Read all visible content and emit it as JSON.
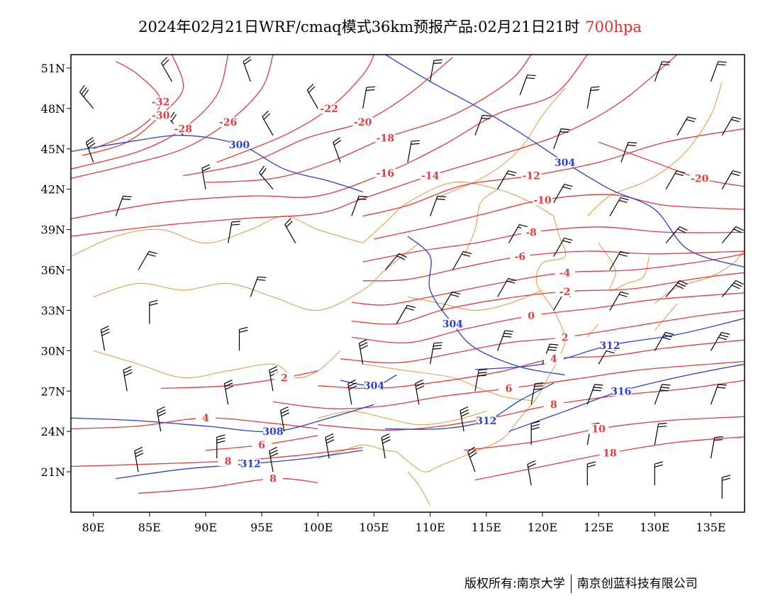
{
  "title": {
    "main": "2024年02月21日WRF/cmaq模式36km预报产品:02月21日21时",
    "level": "700hpa"
  },
  "footer": {
    "copyright": "版权所有:南京大学",
    "company": "南京创蓝科技有限公司"
  },
  "colors": {
    "temperature": "#e83a3a",
    "height": "#2a3fd6",
    "border": "#e09a3a",
    "wind": "#000000",
    "frame": "#000000"
  },
  "axes": {
    "lon_range": [
      78,
      138
    ],
    "lat_range": [
      18,
      52
    ],
    "x_ticks": [
      {
        "lon": 80,
        "label": "80E"
      },
      {
        "lon": 85,
        "label": "85E"
      },
      {
        "lon": 90,
        "label": "90E"
      },
      {
        "lon": 95,
        "label": "95E"
      },
      {
        "lon": 100,
        "label": "100E"
      },
      {
        "lon": 105,
        "label": "105E"
      },
      {
        "lon": 110,
        "label": "110E"
      },
      {
        "lon": 115,
        "label": "115E"
      },
      {
        "lon": 120,
        "label": "120E"
      },
      {
        "lon": 125,
        "label": "125E"
      },
      {
        "lon": 130,
        "label": "130E"
      },
      {
        "lon": 135,
        "label": "135E"
      }
    ],
    "y_ticks": [
      {
        "lat": 51,
        "label": "51N"
      },
      {
        "lat": 48,
        "label": "48N"
      },
      {
        "lat": 45,
        "label": "45N"
      },
      {
        "lat": 42,
        "label": "42N"
      },
      {
        "lat": 39,
        "label": "39N"
      },
      {
        "lat": 36,
        "label": "36N"
      },
      {
        "lat": 33,
        "label": "33N"
      },
      {
        "lat": 30,
        "label": "30N"
      },
      {
        "lat": 27,
        "label": "27N"
      },
      {
        "lat": 24,
        "label": "24N"
      },
      {
        "lat": 21,
        "label": "21N"
      }
    ]
  },
  "temperature_contours": [
    {
      "label": "-32",
      "pts": [
        [
          80,
          45
        ],
        [
          84,
          46.5
        ],
        [
          86,
          48.5
        ],
        [
          84,
          50.5
        ],
        [
          82,
          51.5
        ]
      ]
    },
    {
      "label": "-30",
      "pts": [
        [
          79,
          44.5
        ],
        [
          83,
          45.5
        ],
        [
          86,
          47.5
        ],
        [
          88,
          49.5
        ],
        [
          87,
          52
        ]
      ]
    },
    {
      "label": "-28",
      "pts": [
        [
          78,
          43.5
        ],
        [
          84,
          44.8
        ],
        [
          88,
          46.5
        ],
        [
          91,
          49
        ],
        [
          92,
          52
        ]
      ]
    },
    {
      "label": "-26",
      "pts": [
        [
          78,
          42.8
        ],
        [
          83,
          43.8
        ],
        [
          88,
          45
        ],
        [
          92,
          47
        ],
        [
          95,
          49.5
        ],
        [
          96,
          52
        ]
      ]
    },
    {
      "label": "-22",
      "pts": [
        [
          91,
          44
        ],
        [
          97,
          46
        ],
        [
          101,
          48
        ],
        [
          104,
          50.5
        ],
        [
          105,
          52
        ]
      ]
    },
    {
      "label": "-20",
      "pts": [
        [
          88,
          43
        ],
        [
          94,
          44
        ],
        [
          99,
          45.8
        ],
        [
          104,
          47
        ],
        [
          108,
          49
        ],
        [
          112,
          51.8
        ]
      ]
    },
    {
      "label": "-18",
      "pts": [
        [
          90,
          42.5
        ],
        [
          96,
          42.8
        ],
        [
          101,
          44
        ],
        [
          106,
          45.8
        ],
        [
          112,
          47.5
        ],
        [
          117,
          50
        ],
        [
          119,
          52
        ]
      ]
    },
    {
      "label": "-16",
      "pts": [
        [
          78,
          39.8
        ],
        [
          86,
          41
        ],
        [
          94,
          41.5
        ],
        [
          100,
          41.5
        ],
        [
          106,
          43.2
        ],
        [
          111,
          45.2
        ],
        [
          116,
          47.6
        ],
        [
          121,
          49
        ],
        [
          124,
          52
        ]
      ]
    },
    {
      "label": "-14",
      "pts": [
        [
          78,
          38.5
        ],
        [
          86,
          39.3
        ],
        [
          93,
          39.8
        ],
        [
          100,
          40.2
        ],
        [
          104,
          41.3
        ],
        [
          110,
          43
        ],
        [
          116,
          44.5
        ],
        [
          122,
          46.2
        ],
        [
          127,
          48.5
        ],
        [
          132,
          52
        ]
      ]
    },
    {
      "label": "-12",
      "pts": [
        [
          104,
          40
        ],
        [
          108,
          40.8
        ],
        [
          113,
          42.3
        ],
        [
          119,
          43
        ],
        [
          125,
          44
        ],
        [
          131,
          45.5
        ],
        [
          138,
          46.5
        ]
      ]
    },
    {
      "label": "-20",
      "pts": [
        [
          125,
          45.5
        ],
        [
          130,
          44
        ],
        [
          134,
          42.8
        ],
        [
          138,
          42.2
        ]
      ]
    },
    {
      "label": "-10",
      "pts": [
        [
          105,
          38.3
        ],
        [
          110,
          39.2
        ],
        [
          115,
          40.2
        ],
        [
          120,
          41.2
        ],
        [
          126,
          41.6
        ],
        [
          131,
          40.8
        ],
        [
          138,
          40.5
        ]
      ]
    },
    {
      "label": "-8",
      "pts": [
        [
          104,
          36.6
        ],
        [
          109,
          37.4
        ],
        [
          114,
          38
        ],
        [
          119,
          38.8
        ],
        [
          125,
          39.2
        ],
        [
          131,
          38.8
        ],
        [
          138,
          38.8
        ]
      ]
    },
    {
      "label": "-6",
      "pts": [
        [
          104,
          35.2
        ],
        [
          108,
          35.3
        ],
        [
          113,
          36.2
        ],
        [
          118,
          37
        ],
        [
          124,
          37.4
        ],
        [
          130,
          37.2
        ],
        [
          138,
          37.4
        ]
      ]
    },
    {
      "label": "-4",
      "pts": [
        [
          103,
          33.6
        ],
        [
          106,
          33.4
        ],
        [
          110,
          34
        ],
        [
          116,
          35
        ],
        [
          122,
          35.8
        ],
        [
          128,
          36
        ],
        [
          134,
          36.6
        ],
        [
          138,
          37.2
        ]
      ]
    },
    {
      "label": "-2",
      "pts": [
        [
          103,
          32.2
        ],
        [
          107,
          32
        ],
        [
          111,
          33
        ],
        [
          116,
          33.8
        ],
        [
          122,
          34.4
        ],
        [
          128,
          34.6
        ],
        [
          134,
          35.4
        ],
        [
          138,
          35.8
        ]
      ]
    },
    {
      "label": "0",
      "pts": [
        [
          103,
          31
        ],
        [
          108,
          30.6
        ],
        [
          113,
          31.6
        ],
        [
          119,
          32.6
        ],
        [
          125,
          33.2
        ],
        [
          130,
          33.8
        ],
        [
          138,
          34.3
        ]
      ]
    },
    {
      "label": "2",
      "pts": [
        [
          102,
          29.4
        ],
        [
          107,
          29.1
        ],
        [
          112,
          29.8
        ],
        [
          117,
          30.6
        ],
        [
          122,
          31
        ],
        [
          128,
          31.8
        ],
        [
          134,
          32.6
        ],
        [
          138,
          33
        ]
      ]
    },
    {
      "label": "4",
      "pts": [
        [
          100,
          27.4
        ],
        [
          105,
          27.2
        ],
        [
          110,
          27.6
        ],
        [
          116,
          28.4
        ],
        [
          121,
          29.4
        ],
        [
          126,
          29.6
        ],
        [
          131,
          30.2
        ],
        [
          138,
          30.8
        ]
      ]
    },
    {
      "label": "6",
      "pts": [
        [
          96,
          26.2
        ],
        [
          101,
          25.7
        ],
        [
          106,
          25.9
        ],
        [
          111,
          26.6
        ],
        [
          117,
          27.2
        ],
        [
          123,
          27.9
        ],
        [
          129,
          28.6
        ],
        [
          138,
          29.2
        ]
      ]
    },
    {
      "label": "8",
      "pts": [
        [
          100,
          24.5
        ],
        [
          106,
          24.1
        ],
        [
          111,
          24.4
        ],
        [
          116,
          25.1
        ],
        [
          121,
          26
        ],
        [
          127,
          26.7
        ],
        [
          133,
          27.2
        ],
        [
          138,
          27.8
        ]
      ]
    },
    {
      "label": "10",
      "pts": [
        [
          113,
          22.6
        ],
        [
          119,
          23.2
        ],
        [
          125,
          24.2
        ],
        [
          131,
          24.8
        ],
        [
          138,
          25.1
        ]
      ]
    },
    {
      "label": "18",
      "pts": [
        [
          114,
          20.4
        ],
        [
          120,
          21.4
        ],
        [
          126,
          22.4
        ],
        [
          132,
          23.2
        ],
        [
          138,
          23.6
        ]
      ]
    },
    {
      "label": "4",
      "pts": [
        [
          78,
          24.2
        ],
        [
          84,
          24.4
        ],
        [
          90,
          25
        ],
        [
          96,
          24.6
        ],
        [
          100,
          24.2
        ]
      ]
    },
    {
      "label": "2",
      "pts": [
        [
          86,
          27.2
        ],
        [
          92,
          27.4
        ],
        [
          97,
          28
        ],
        [
          100,
          28.5
        ]
      ]
    },
    {
      "label": "6",
      "pts": [
        [
          90,
          22.6
        ],
        [
          95,
          23
        ],
        [
          100,
          23.7
        ]
      ]
    },
    {
      "label": "8",
      "pts": [
        [
          78,
          21.4
        ],
        [
          86,
          21.6
        ],
        [
          92,
          21.8
        ],
        [
          98,
          22.2
        ],
        [
          104,
          22.8
        ]
      ]
    },
    {
      "label": "8",
      "pts": [
        [
          84,
          19.4
        ],
        [
          90,
          19.8
        ],
        [
          96,
          20.5
        ],
        [
          100,
          20.2
        ]
      ]
    }
  ],
  "height_contours": [
    {
      "label": "304",
      "pts": [
        [
          106,
          52
        ],
        [
          110,
          50
        ],
        [
          114,
          48.2
        ],
        [
          118,
          46.2
        ],
        [
          122,
          44
        ],
        [
          126,
          42
        ],
        [
          130,
          40.5
        ],
        [
          133,
          37.5
        ],
        [
          138,
          36.2
        ]
      ]
    },
    {
      "label": "300",
      "pts": [
        [
          78,
          44.8
        ],
        [
          83,
          45.5
        ],
        [
          88,
          46
        ],
        [
          93,
          45.3
        ],
        [
          97,
          43.5
        ],
        [
          101,
          42.6
        ],
        [
          104,
          41.8
        ]
      ]
    },
    {
      "label": "304",
      "pts": [
        [
          108,
          38.5
        ],
        [
          110,
          37
        ],
        [
          110,
          34.5
        ],
        [
          112,
          32
        ],
        [
          114,
          30.2
        ],
        [
          118,
          28.8
        ],
        [
          122,
          28.2
        ]
      ]
    },
    {
      "label": "312",
      "pts": [
        [
          114,
          28.6
        ],
        [
          120,
          29
        ],
        [
          126,
          30.4
        ],
        [
          132,
          31.2
        ],
        [
          138,
          32.4
        ]
      ]
    },
    {
      "label": "316",
      "pts": [
        [
          117,
          24
        ],
        [
          122,
          25.5
        ],
        [
          127,
          27
        ],
        [
          133,
          28.2
        ],
        [
          138,
          29
        ]
      ]
    },
    {
      "label": "312",
      "pts": [
        [
          106,
          24.2
        ],
        [
          111,
          24.2
        ],
        [
          115,
          24.8
        ],
        [
          118,
          26.3
        ],
        [
          121,
          27.6
        ]
      ]
    },
    {
      "label": "308",
      "pts": [
        [
          78,
          25
        ],
        [
          84,
          24.8
        ],
        [
          90,
          24.4
        ],
        [
          96,
          24
        ],
        [
          101,
          25
        ],
        [
          105,
          26
        ]
      ]
    },
    {
      "label": "312",
      "pts": [
        [
          82,
          20.5
        ],
        [
          88,
          21.2
        ],
        [
          94,
          21.6
        ],
        [
          99,
          22
        ],
        [
          104,
          22.6
        ]
      ]
    },
    {
      "label": "304",
      "pts": [
        [
          102,
          27.8
        ],
        [
          105,
          27.4
        ],
        [
          107,
          28.2
        ]
      ]
    }
  ],
  "wind_barbs": [
    [
      80,
      48,
      -40,
      3
    ],
    [
      80,
      44,
      -20,
      3
    ],
    [
      82,
      40,
      20,
      2
    ],
    [
      84,
      36,
      30,
      2
    ],
    [
      85,
      32,
      0,
      2
    ],
    [
      81,
      30,
      -10,
      3
    ],
    [
      83,
      27,
      -10,
      3
    ],
    [
      86,
      24,
      -10,
      3
    ],
    [
      84,
      21,
      -10,
      3
    ],
    [
      87,
      50,
      -30,
      2
    ],
    [
      88,
      46,
      -40,
      2
    ],
    [
      90,
      42,
      -10,
      2
    ],
    [
      92,
      38,
      10,
      2
    ],
    [
      94,
      34,
      20,
      2
    ],
    [
      93,
      30,
      0,
      2
    ],
    [
      92,
      26,
      -10,
      3
    ],
    [
      91,
      22,
      0,
      3
    ],
    [
      94,
      50,
      -20,
      2
    ],
    [
      96,
      46,
      -30,
      2
    ],
    [
      96,
      42,
      -40,
      2
    ],
    [
      98,
      38,
      -30,
      2
    ],
    [
      96,
      27,
      -10,
      3
    ],
    [
      97,
      24,
      -10,
      3
    ],
    [
      96,
      21,
      -10,
      3
    ],
    [
      100,
      48,
      -30,
      2
    ],
    [
      102,
      44,
      -20,
      2
    ],
    [
      103,
      40,
      20,
      2
    ],
    [
      106,
      36,
      40,
      2
    ],
    [
      107,
      32,
      30,
      2
    ],
    [
      104,
      29,
      -10,
      3
    ],
    [
      103,
      26,
      -10,
      3
    ],
    [
      101,
      22,
      -10,
      3
    ],
    [
      104,
      48,
      10,
      2
    ],
    [
      108,
      44,
      10,
      2
    ],
    [
      110,
      40,
      20,
      2
    ],
    [
      112,
      36,
      30,
      2
    ],
    [
      111,
      33,
      30,
      2
    ],
    [
      110,
      29,
      10,
      3
    ],
    [
      109,
      26,
      -10,
      3
    ],
    [
      106,
      22,
      -10,
      3
    ],
    [
      110,
      50,
      10,
      2
    ],
    [
      114,
      46,
      20,
      2
    ],
    [
      116,
      42,
      30,
      2
    ],
    [
      117,
      38,
      30,
      2
    ],
    [
      116,
      34,
      30,
      2
    ],
    [
      116,
      30,
      20,
      3
    ],
    [
      114,
      27,
      10,
      3
    ],
    [
      113,
      24,
      -10,
      3
    ],
    [
      114,
      21,
      -20,
      3
    ],
    [
      118,
      49,
      20,
      2
    ],
    [
      121,
      45,
      20,
      2
    ],
    [
      121,
      41,
      30,
      2
    ],
    [
      121,
      37,
      30,
      2
    ],
    [
      121,
      33,
      30,
      2
    ],
    [
      120,
      29,
      20,
      3
    ],
    [
      119,
      26,
      10,
      3
    ],
    [
      119,
      23,
      0,
      3
    ],
    [
      119,
      20,
      -10,
      2
    ],
    [
      124,
      48,
      10,
      2
    ],
    [
      127,
      44,
      20,
      2
    ],
    [
      126,
      40,
      30,
      2
    ],
    [
      126,
      36,
      30,
      2
    ],
    [
      126,
      33,
      30,
      2
    ],
    [
      125,
      29,
      30,
      3
    ],
    [
      124,
      26,
      20,
      3
    ],
    [
      124,
      23,
      10,
      3
    ],
    [
      124,
      20,
      0,
      2
    ],
    [
      130,
      50,
      20,
      2
    ],
    [
      132,
      46,
      30,
      2
    ],
    [
      131,
      42,
      30,
      2
    ],
    [
      131,
      38,
      40,
      2
    ],
    [
      131,
      34,
      40,
      3
    ],
    [
      130,
      30,
      30,
      3
    ],
    [
      130,
      26,
      20,
      3
    ],
    [
      130,
      23,
      10,
      2
    ],
    [
      130,
      20,
      0,
      2
    ],
    [
      135,
      50,
      20,
      2
    ],
    [
      136,
      46,
      30,
      2
    ],
    [
      136,
      42,
      30,
      2
    ],
    [
      136,
      38,
      40,
      2
    ],
    [
      136,
      34,
      40,
      3
    ],
    [
      135,
      30,
      30,
      3
    ],
    [
      135,
      26,
      20,
      2
    ],
    [
      135,
      22,
      10,
      2
    ],
    [
      136,
      19,
      0,
      2
    ]
  ]
}
